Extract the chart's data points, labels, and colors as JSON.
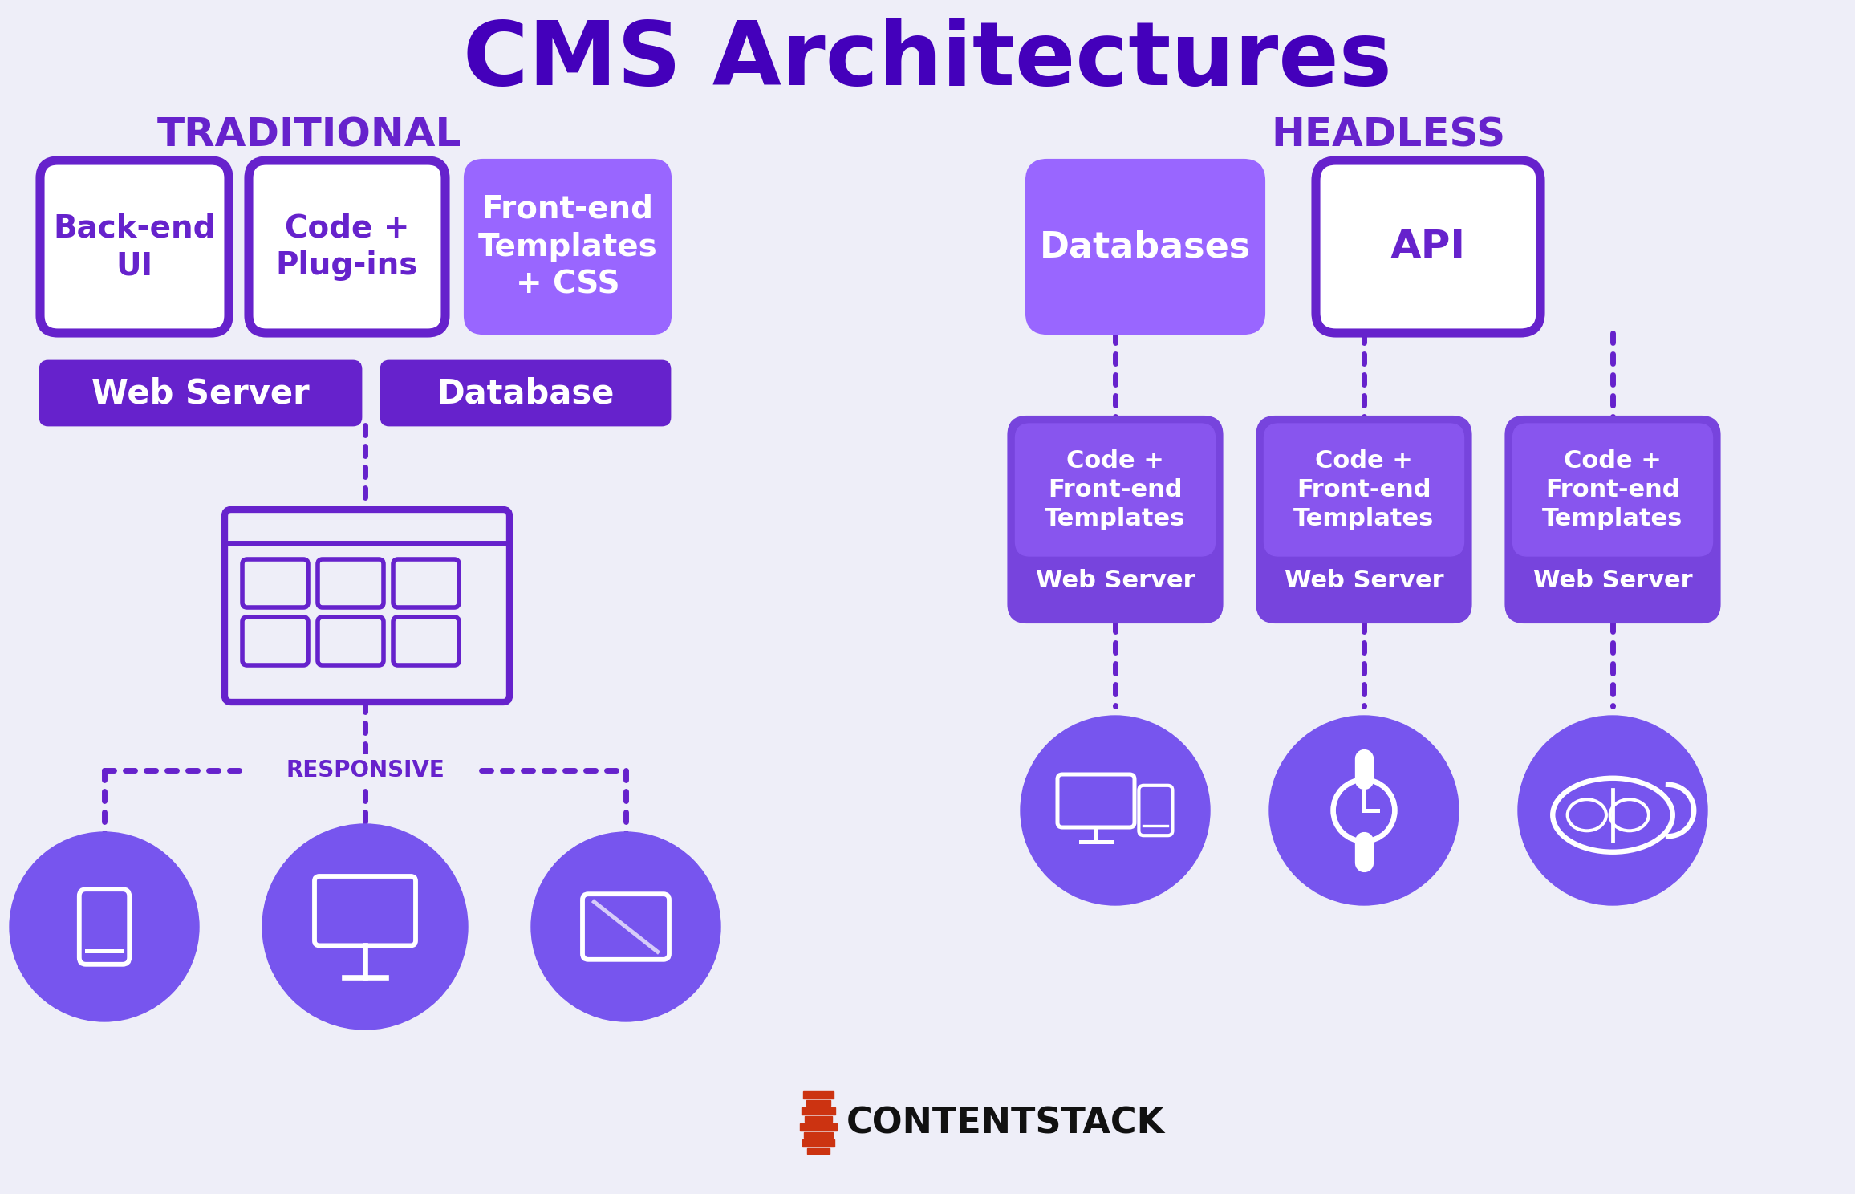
{
  "title": "CMS Architectures",
  "title_color": "#4400BB",
  "bg_color": "#EEEEF8",
  "purple_dark": "#5500BB",
  "purple_box": "#6622CC",
  "purple_fill": "#7744DD",
  "purple_light": "#8855EE",
  "purple_circle": "#7755EE",
  "white": "#FFFFFF",
  "traditional_label": "TRADITIONAL",
  "headless_label": "HEADLESS",
  "trad_box1": "Back-end\nUI",
  "trad_box2": "Code +\nPlug-ins",
  "trad_box3": "Front-end\nTemplates\n+ CSS",
  "trad_webserver": "Web Server",
  "trad_database": "Database",
  "responsive_label": "RESPONSIVE",
  "headless_db": "Databases",
  "headless_api": "API",
  "headless_code": "Code +\nFront-end\nTemplates",
  "headless_webserver": "Web Server",
  "contentstack_color": "#CC3311",
  "contentstack_text": "CONTENTSTACK"
}
